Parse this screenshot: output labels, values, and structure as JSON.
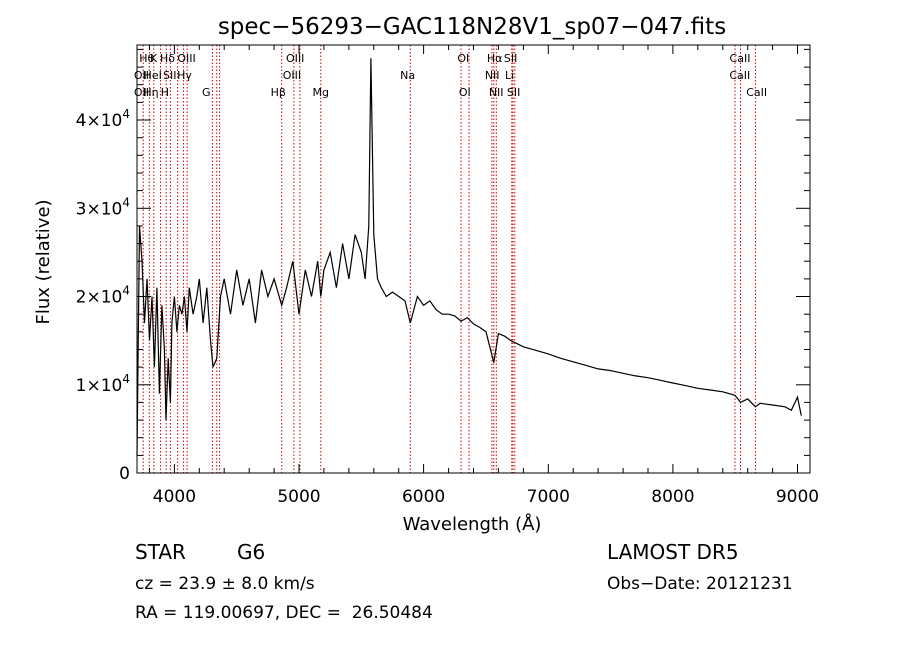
{
  "chart_data": {
    "type": "line",
    "title": "spec−56293−GAC118N28V1_sp07−047.fits",
    "xlabel": "Wavelength (Å)",
    "ylabel": "Flux (relative)",
    "xlim": [
      3700,
      9100
    ],
    "ylim": [
      0,
      48500
    ],
    "x_ticks": [
      {
        "value": 4000,
        "label": "4000"
      },
      {
        "value": 5000,
        "label": "5000"
      },
      {
        "value": 6000,
        "label": "6000"
      },
      {
        "value": 7000,
        "label": "7000"
      },
      {
        "value": 8000,
        "label": "8000"
      },
      {
        "value": 9000,
        "label": "9000"
      }
    ],
    "y_ticks": [
      {
        "value": 0,
        "mantissa": "0",
        "exponent": ""
      },
      {
        "value": 10000,
        "mantissa": "1×10",
        "exponent": "4"
      },
      {
        "value": 20000,
        "mantissa": "2×10",
        "exponent": "4"
      },
      {
        "value": 30000,
        "mantissa": "3×10",
        "exponent": "4"
      },
      {
        "value": 40000,
        "mantissa": "4×10",
        "exponent": "4"
      }
    ],
    "grid": false,
    "series": [
      {
        "color": "#000000",
        "x": [
          3700,
          3720,
          3740,
          3760,
          3780,
          3800,
          3820,
          3840,
          3860,
          3880,
          3900,
          3920,
          3933,
          3950,
          3968,
          3980,
          4000,
          4020,
          4040,
          4060,
          4080,
          4101,
          4120,
          4150,
          4180,
          4200,
          4230,
          4260,
          4290,
          4310,
          4340,
          4370,
          4400,
          4450,
          4500,
          4550,
          4600,
          4650,
          4700,
          4750,
          4800,
          4861,
          4900,
          4950,
          5000,
          5050,
          5100,
          5150,
          5175,
          5200,
          5250,
          5300,
          5350,
          5400,
          5450,
          5500,
          5530,
          5560,
          5577,
          5600,
          5630,
          5660,
          5700,
          5750,
          5800,
          5850,
          5893,
          5950,
          6000,
          6050,
          6100,
          6150,
          6200,
          6250,
          6300,
          6350,
          6400,
          6450,
          6500,
          6563,
          6600,
          6650,
          6700,
          6800,
          6900,
          7000,
          7100,
          7200,
          7300,
          7400,
          7500,
          7600,
          7700,
          7800,
          7900,
          8000,
          8100,
          8200,
          8300,
          8400,
          8498,
          8542,
          8600,
          8662,
          8700,
          8800,
          8900,
          8950,
          9000,
          9030
        ],
        "y": [
          2000,
          28000,
          24000,
          17000,
          22000,
          15000,
          20000,
          12000,
          21000,
          9000,
          19000,
          14000,
          6000,
          13000,
          8000,
          17000,
          20000,
          16000,
          19000,
          18000,
          20000,
          16000,
          21000,
          18000,
          20000,
          22000,
          17000,
          21000,
          15000,
          12000,
          13000,
          20000,
          22000,
          18000,
          23000,
          19000,
          22000,
          17000,
          23000,
          20000,
          22000,
          19000,
          21000,
          24000,
          18000,
          23000,
          20000,
          24000,
          20000,
          23000,
          25000,
          21000,
          26000,
          22000,
          27000,
          25000,
          22000,
          28000,
          47000,
          27000,
          22000,
          21000,
          20000,
          20500,
          20000,
          19500,
          17000,
          20000,
          19000,
          19500,
          18500,
          18000,
          18000,
          17800,
          17200,
          17600,
          16900,
          16500,
          16000,
          12500,
          15800,
          15500,
          15000,
          14300,
          13900,
          13500,
          13000,
          12600,
          12200,
          11800,
          11600,
          11300,
          11000,
          10800,
          10500,
          10200,
          9900,
          9600,
          9400,
          9200,
          8800,
          8000,
          8400,
          7500,
          7900,
          7700,
          7500,
          7100,
          8600,
          6500
        ]
      }
    ],
    "lines": [
      {
        "wave": 3750,
        "color": "#cc0000"
      },
      {
        "wave": 3799,
        "color": "#cc0000"
      },
      {
        "wave": 3835,
        "color": "#cc0000"
      },
      {
        "wave": 3889,
        "color": "#cc0000"
      },
      {
        "wave": 3934,
        "color": "#cc0000"
      },
      {
        "wave": 3968,
        "color": "#cc0000"
      },
      {
        "wave": 4026,
        "color": "#cc0000"
      },
      {
        "wave": 4072,
        "color": "#cc0000"
      },
      {
        "wave": 4102,
        "color": "#cc0000"
      },
      {
        "wave": 4305,
        "color": "#cc0000"
      },
      {
        "wave": 4340,
        "color": "#cc0000"
      },
      {
        "wave": 4363,
        "color": "#cc0000"
      },
      {
        "wave": 4861,
        "color": "#cc0000"
      },
      {
        "wave": 4959,
        "color": "#cc0000"
      },
      {
        "wave": 5007,
        "color": "#cc0000"
      },
      {
        "wave": 5175,
        "color": "#cc0000"
      },
      {
        "wave": 5893,
        "color": "#cc0000"
      },
      {
        "wave": 6300,
        "color": "#cc0000"
      },
      {
        "wave": 6364,
        "color": "#cc0000"
      },
      {
        "wave": 6548,
        "color": "#cc0000"
      },
      {
        "wave": 6563,
        "color": "#cc0000"
      },
      {
        "wave": 6583,
        "color": "#cc0000"
      },
      {
        "wave": 6707,
        "color": "#cc0000"
      },
      {
        "wave": 6716,
        "color": "#cc0000"
      },
      {
        "wave": 6731,
        "color": "#cc0000"
      },
      {
        "wave": 8498,
        "color": "#cc0000"
      },
      {
        "wave": 8542,
        "color": "#cc0000"
      },
      {
        "wave": 8662,
        "color": "#cc0000"
      }
    ],
    "line_labels": [
      {
        "wave": 3779,
        "row": 0,
        "text": "Hθ"
      },
      {
        "wave": 3833,
        "row": 0,
        "text": "K"
      },
      {
        "wave": 3945,
        "row": 0,
        "text": "Hδ"
      },
      {
        "wave": 4098,
        "row": 0,
        "text": "OIII"
      },
      {
        "wave": 4969,
        "row": 0,
        "text": "OIII"
      },
      {
        "wave": 6318,
        "row": 0,
        "text": "OI"
      },
      {
        "wave": 6569,
        "row": 0,
        "text": "Hα"
      },
      {
        "wave": 6698,
        "row": 0,
        "text": "SII"
      },
      {
        "wave": 8538,
        "row": 0,
        "text": "CaII"
      },
      {
        "wave": 3735,
        "row": 1,
        "text": "OII"
      },
      {
        "wave": 3826,
        "row": 1,
        "text": "HeI"
      },
      {
        "wave": 3963,
        "row": 1,
        "text": "SII"
      },
      {
        "wave": 4081,
        "row": 1,
        "text": "Hγ"
      },
      {
        "wave": 4943,
        "row": 1,
        "text": "OIII"
      },
      {
        "wave": 5871,
        "row": 1,
        "text": "Na"
      },
      {
        "wave": 6550,
        "row": 1,
        "text": "NII"
      },
      {
        "wave": 6690,
        "row": 1,
        "text": "Li"
      },
      {
        "wave": 8537,
        "row": 1,
        "text": "CaII"
      },
      {
        "wave": 3735,
        "row": 2,
        "text": "OII"
      },
      {
        "wave": 3812,
        "row": 2,
        "text": "Hη"
      },
      {
        "wave": 3924,
        "row": 2,
        "text": "H"
      },
      {
        "wave": 4256,
        "row": 2,
        "text": "G"
      },
      {
        "wave": 4834,
        "row": 2,
        "text": "Hβ"
      },
      {
        "wave": 5175,
        "row": 2,
        "text": "Mg"
      },
      {
        "wave": 6330,
        "row": 2,
        "text": "OI"
      },
      {
        "wave": 6582,
        "row": 2,
        "text": "NII"
      },
      {
        "wave": 6722,
        "row": 2,
        "text": "SII"
      },
      {
        "wave": 8672,
        "row": 2,
        "text": "CaII"
      }
    ]
  },
  "info": {
    "object_class": "STAR",
    "subclass": "G6",
    "redshift": "cz = 23.9 ± 8.0 km/s",
    "coords": "RA = 119.00697, DEC =  26.50484",
    "survey": "LAMOST DR5",
    "obs_date": "Obs−Date: 20121231"
  }
}
